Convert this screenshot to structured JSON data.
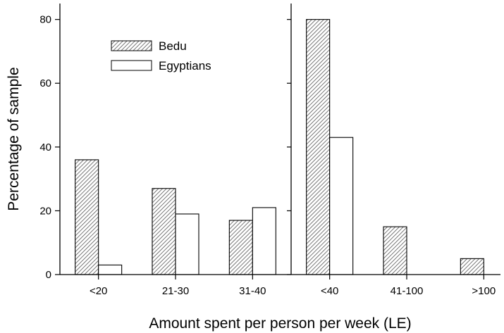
{
  "chart_data": {
    "type": "bar",
    "title": "",
    "xlabel": "Amount spent per person per week (LE)",
    "ylabel": "Percentage of sample",
    "ylim": [
      0,
      85
    ],
    "yticks": [
      0,
      20,
      40,
      60,
      80
    ],
    "grid": false,
    "legend_position": "top-left",
    "categories": [
      "<20",
      "21-30",
      "31-40",
      "<40",
      "41-100",
      ">100"
    ],
    "panels": [
      {
        "categories": [
          "<20",
          "21-30",
          "31-40"
        ]
      },
      {
        "categories": [
          "<40",
          "41-100",
          ">100"
        ]
      }
    ],
    "series": [
      {
        "name": "Bedu",
        "values": [
          36,
          27,
          17,
          80,
          15,
          5
        ],
        "fill": "hatched"
      },
      {
        "name": "Egyptians",
        "values": [
          3,
          19,
          21,
          43,
          0,
          0
        ],
        "fill": "white"
      }
    ]
  },
  "colors": {
    "stroke": "#000000",
    "hatch": "#555555",
    "background": "#ffffff"
  }
}
